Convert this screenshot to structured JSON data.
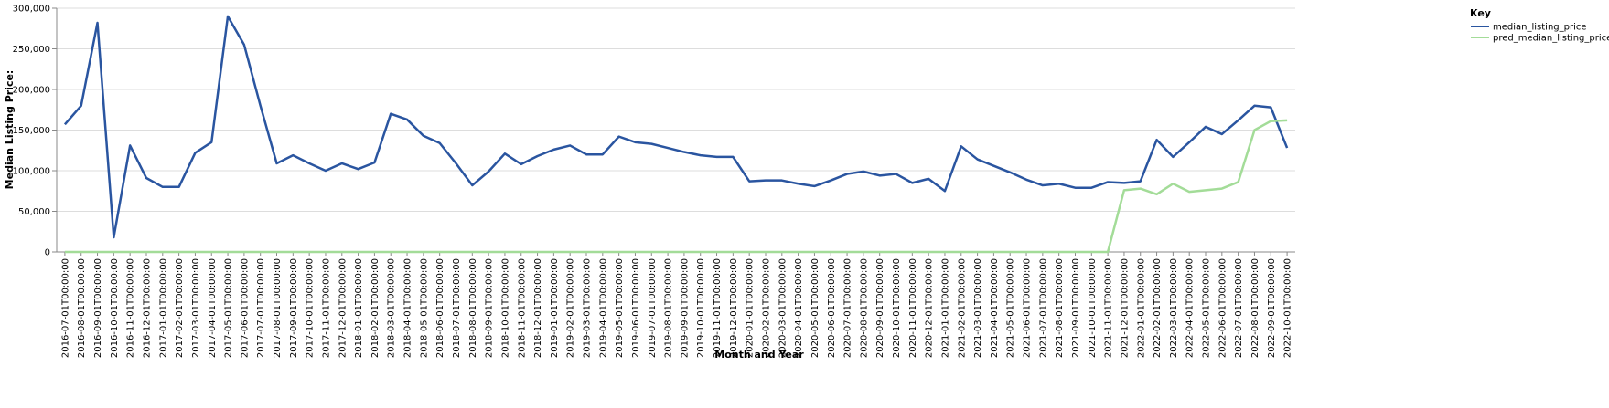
{
  "chart_data": {
    "type": "line",
    "x_label": "Month and Year",
    "y_label": "Median Listing Price:",
    "legend_title": "Key",
    "legend_position": "right",
    "grid": true,
    "categories": [
      "2016-07-01T00:00:00",
      "2016-08-01T00:00:00",
      "2016-09-01T00:00:00",
      "2016-10-01T00:00:00",
      "2016-11-01T00:00:00",
      "2016-12-01T00:00:00",
      "2017-01-01T00:00:00",
      "2017-02-01T00:00:00",
      "2017-03-01T00:00:00",
      "2017-04-01T00:00:00",
      "2017-05-01T00:00:00",
      "2017-06-01T00:00:00",
      "2017-07-01T00:00:00",
      "2017-08-01T00:00:00",
      "2017-09-01T00:00:00",
      "2017-10-01T00:00:00",
      "2017-11-01T00:00:00",
      "2017-12-01T00:00:00",
      "2018-01-01T00:00:00",
      "2018-02-01T00:00:00",
      "2018-03-01T00:00:00",
      "2018-04-01T00:00:00",
      "2018-05-01T00:00:00",
      "2018-06-01T00:00:00",
      "2018-07-01T00:00:00",
      "2018-08-01T00:00:00",
      "2018-09-01T00:00:00",
      "2018-10-01T00:00:00",
      "2018-11-01T00:00:00",
      "2018-12-01T00:00:00",
      "2019-01-01T00:00:00",
      "2019-02-01T00:00:00",
      "2019-03-01T00:00:00",
      "2019-04-01T00:00:00",
      "2019-05-01T00:00:00",
      "2019-06-01T00:00:00",
      "2019-07-01T00:00:00",
      "2019-08-01T00:00:00",
      "2019-09-01T00:00:00",
      "2019-10-01T00:00:00",
      "2019-11-01T00:00:00",
      "2019-12-01T00:00:00",
      "2020-01-01T00:00:00",
      "2020-02-01T00:00:00",
      "2020-03-01T00:00:00",
      "2020-04-01T00:00:00",
      "2020-05-01T00:00:00",
      "2020-06-01T00:00:00",
      "2020-07-01T00:00:00",
      "2020-08-01T00:00:00",
      "2020-09-01T00:00:00",
      "2020-10-01T00:00:00",
      "2020-11-01T00:00:00",
      "2020-12-01T00:00:00",
      "2021-01-01T00:00:00",
      "2021-02-01T00:00:00",
      "2021-03-01T00:00:00",
      "2021-04-01T00:00:00",
      "2021-05-01T00:00:00",
      "2021-06-01T00:00:00",
      "2021-07-01T00:00:00",
      "2021-08-01T00:00:00",
      "2021-09-01T00:00:00",
      "2021-10-01T00:00:00",
      "2021-11-01T00:00:00",
      "2021-12-01T00:00:00",
      "2022-01-01T00:00:00",
      "2022-02-01T00:00:00",
      "2022-03-01T00:00:00",
      "2022-04-01T00:00:00",
      "2022-05-01T00:00:00",
      "2022-06-01T00:00:00",
      "2022-07-01T00:00:00",
      "2022-08-01T00:00:00",
      "2022-09-01T00:00:00",
      "2022-10-01T00:00:00"
    ],
    "series": [
      {
        "name": "median_listing_price",
        "color": "#2a55a0",
        "values": [
          157000,
          180000,
          282000,
          18000,
          131000,
          91000,
          80000,
          80000,
          122000,
          135000,
          290000,
          255000,
          180000,
          109000,
          119000,
          109000,
          100000,
          109000,
          102000,
          110000,
          170000,
          163000,
          143000,
          134000,
          109000,
          82000,
          99000,
          121000,
          108000,
          118000,
          126000,
          131000,
          120000,
          120000,
          142000,
          135000,
          133000,
          128000,
          123000,
          119000,
          117000,
          117000,
          87000,
          88000,
          88000,
          84000,
          81000,
          88000,
          96000,
          99000,
          94000,
          96000,
          85000,
          90000,
          75000,
          130000,
          114000,
          106000,
          98000,
          89000,
          82000,
          84000,
          79000,
          79000,
          86000,
          85000,
          87000,
          138000,
          117000,
          135000,
          154000,
          145000,
          162000,
          180000,
          178000,
          128000
        ]
      },
      {
        "name": "pred_median_listing_price",
        "color": "#a3dc98",
        "values": [
          0,
          0,
          0,
          0,
          0,
          0,
          0,
          0,
          0,
          0,
          0,
          0,
          0,
          0,
          0,
          0,
          0,
          0,
          0,
          0,
          0,
          0,
          0,
          0,
          0,
          0,
          0,
          0,
          0,
          0,
          0,
          0,
          0,
          0,
          0,
          0,
          0,
          0,
          0,
          0,
          0,
          0,
          0,
          0,
          0,
          0,
          0,
          0,
          0,
          0,
          0,
          0,
          0,
          0,
          0,
          0,
          0,
          0,
          0,
          0,
          0,
          0,
          0,
          0,
          0,
          76000,
          78000,
          71000,
          84000,
          74000,
          76000,
          78000,
          86000,
          150000,
          161000,
          162000
        ]
      }
    ],
    "ylim": [
      0,
      300000
    ],
    "yticks": [
      0,
      {
        "value": 50000,
        "label": "50,000"
      },
      {
        "value": 100000,
        "label": "100,000"
      },
      {
        "value": 150000,
        "label": "150,000"
      },
      {
        "value": 200000,
        "label": "200,000"
      },
      {
        "value": 250000,
        "label": "250,000"
      },
      {
        "value": 300000,
        "label": "300,000"
      }
    ]
  }
}
